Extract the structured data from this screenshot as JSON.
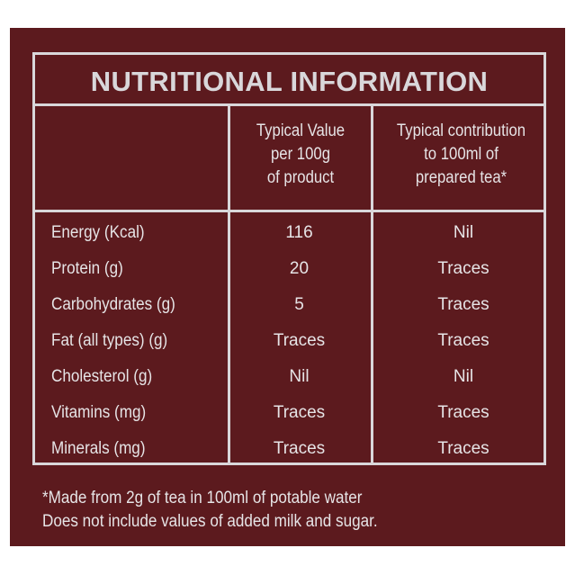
{
  "title": "NUTRITIONAL INFORMATION",
  "columns": [
    "",
    "Typical Value\nper 100g\nof product",
    "Typical contribution\nto 100ml of\nprepared tea*"
  ],
  "column_lines": [
    [
      "Typical Value",
      "per 100g",
      "of product"
    ],
    [
      "Typical contribution",
      "to 100ml of",
      "prepared tea*"
    ]
  ],
  "rows": [
    [
      "Energy (Kcal)",
      "116",
      "Nil"
    ],
    [
      "Protein (g)",
      "20",
      "Traces"
    ],
    [
      "Carbohydrates (g)",
      "5",
      "Traces"
    ],
    [
      "Fat (all types) (g)",
      "Traces",
      "Traces"
    ],
    [
      "Cholesterol (g)",
      "Nil",
      "Nil"
    ],
    [
      "Vitamins (mg)",
      "Traces",
      "Traces"
    ],
    [
      "Minerals (mg)",
      "Traces",
      "Traces"
    ]
  ],
  "footnotes": [
    "*Made from 2g of tea in 100ml of potable water",
    "Does not include values of added milk and sugar."
  ],
  "colors": {
    "background": "#5c1a1e",
    "text": "#e6e4e6"
  }
}
